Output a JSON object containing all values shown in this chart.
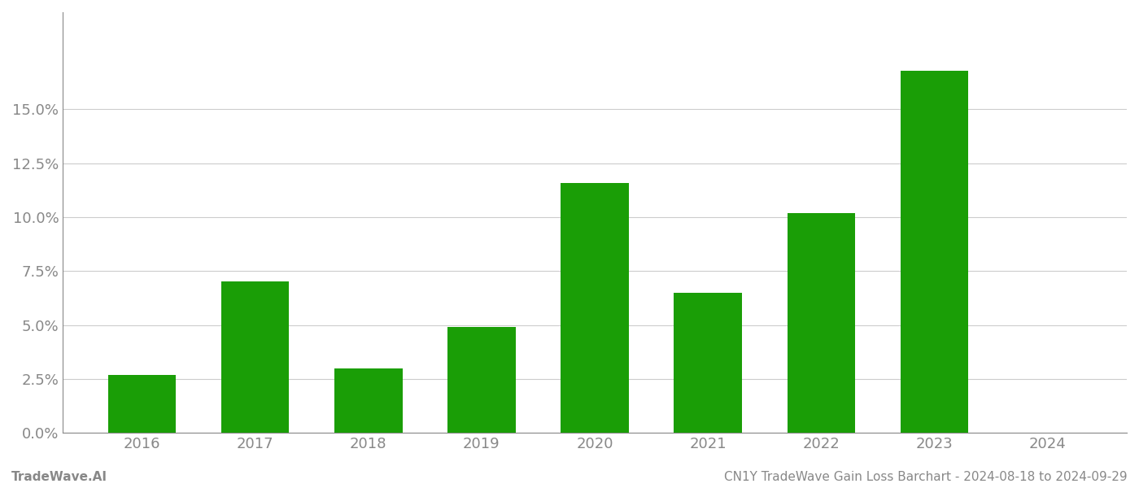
{
  "years": [
    2016,
    2017,
    2018,
    2019,
    2020,
    2021,
    2022,
    2023,
    2024
  ],
  "values": [
    0.027,
    0.07,
    0.03,
    0.049,
    0.116,
    0.065,
    0.102,
    0.168,
    null
  ],
  "bar_color": "#1a9e06",
  "background_color": "#ffffff",
  "grid_color": "#cccccc",
  "axis_color": "#888888",
  "text_color": "#888888",
  "title_text": "CN1Y TradeWave Gain Loss Barchart - 2024-08-18 to 2024-09-29",
  "footer_left": "TradeWave.AI",
  "ylim": [
    0,
    0.195
  ],
  "yticks": [
    0.0,
    0.025,
    0.05,
    0.075,
    0.1,
    0.125,
    0.15
  ],
  "ytick_labels": [
    "0.0%",
    "2.5%",
    "5.0%",
    "7.5%",
    "10.0%",
    "12.5%",
    "15.0%"
  ],
  "bar_width": 0.6,
  "figsize": [
    14.0,
    6.0
  ],
  "dpi": 100
}
